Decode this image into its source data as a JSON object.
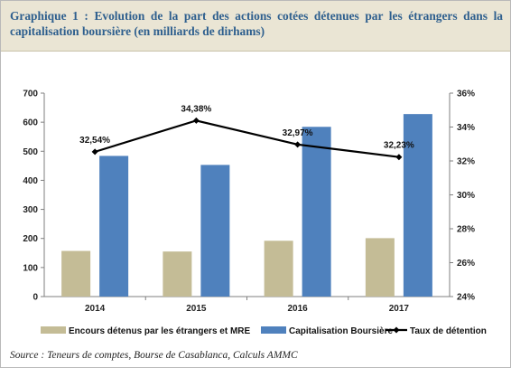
{
  "title": "Graphique 1 : Evolution de la part des actions cotées détenues par les étrangers dans la capitalisation boursière (en milliards de dirhams)",
  "source": "Source : Teneurs de comptes, Bourse de Casablanca, Calculs AMMC",
  "colors": {
    "encours": "#c4bc96",
    "capitalisation": "#4f81bd",
    "taux": "#000000",
    "title": "#2e5f8e",
    "title_bg": "#eae5d4"
  },
  "chart_data": {
    "type": "bar",
    "categories": [
      "2014",
      "2015",
      "2016",
      "2017"
    ],
    "series": [
      {
        "name": "Encours détenus par les étrangers et MRE",
        "type": "bar",
        "axis": "left",
        "values": [
          157,
          155,
          192,
          201
        ]
      },
      {
        "name": "Capitalisation Boursière",
        "type": "bar",
        "axis": "left",
        "values": [
          484,
          453,
          584,
          628
        ]
      },
      {
        "name": "Taux de détention",
        "type": "line",
        "axis": "right",
        "values": [
          32.54,
          34.38,
          32.97,
          32.23
        ],
        "labels": [
          "32,54%",
          "34,38%",
          "32,97%",
          "32,23%"
        ]
      }
    ],
    "ylim": [
      0,
      700
    ],
    "y_ticks": [
      "0",
      "100",
      "200",
      "300",
      "400",
      "500",
      "600",
      "700"
    ],
    "y2lim": [
      24,
      36
    ],
    "y2_ticks": [
      "24%",
      "26%",
      "28%",
      "30%",
      "32%",
      "34%",
      "36%"
    ],
    "grid": false,
    "legend_position": "bottom"
  }
}
